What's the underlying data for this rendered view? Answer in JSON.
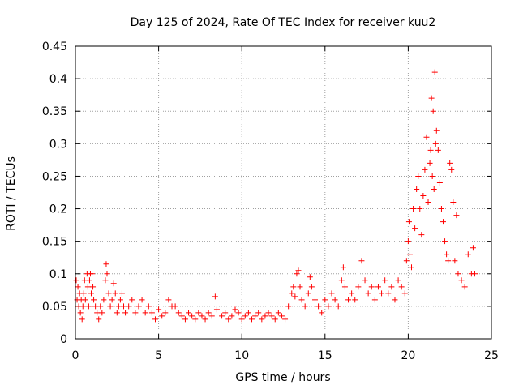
{
  "chart_data": {
    "type": "scatter",
    "title": "Day 125 of 2024, Rate Of TEC Index for receiver kuu2",
    "xlabel": "GPS time / hours",
    "ylabel": "ROTI / TECUs",
    "xlim": [
      0,
      25
    ],
    "ylim": [
      0,
      0.45
    ],
    "xticks": [
      0,
      5,
      10,
      15,
      20,
      25
    ],
    "xtick_labels": [
      "0",
      "5",
      "10",
      "15",
      "20",
      "25"
    ],
    "yticks": [
      0,
      0.05,
      0.1,
      0.15,
      0.2,
      0.25,
      0.3,
      0.35,
      0.4,
      0.45
    ],
    "ytick_labels": [
      "0",
      "0.05",
      "0.1",
      "0.15",
      "0.2",
      "0.25",
      "0.3",
      "0.35",
      "0.4",
      "0.45"
    ],
    "grid": true,
    "marker": "+",
    "series": [
      {
        "name": "ROTI",
        "color": "#ff0000",
        "points": [
          [
            0.05,
            0.09
          ],
          [
            0.1,
            0.06
          ],
          [
            0.15,
            0.08
          ],
          [
            0.2,
            0.05
          ],
          [
            0.25,
            0.07
          ],
          [
            0.3,
            0.04
          ],
          [
            0.35,
            0.06
          ],
          [
            0.4,
            0.03
          ],
          [
            0.45,
            0.05
          ],
          [
            0.5,
            0.07
          ],
          [
            0.55,
            0.09
          ],
          [
            0.6,
            0.06
          ],
          [
            0.7,
            0.1
          ],
          [
            0.75,
            0.08
          ],
          [
            0.8,
            0.05
          ],
          [
            0.85,
            0.09
          ],
          [
            0.9,
            0.1
          ],
          [
            0.95,
            0.07
          ],
          [
            1.0,
            0.1
          ],
          [
            1.05,
            0.08
          ],
          [
            1.1,
            0.06
          ],
          [
            1.2,
            0.05
          ],
          [
            1.3,
            0.04
          ],
          [
            1.4,
            0.03
          ],
          [
            1.5,
            0.05
          ],
          [
            1.6,
            0.04
          ],
          [
            1.7,
            0.06
          ],
          [
            1.8,
            0.09
          ],
          [
            1.85,
            0.115
          ],
          [
            1.9,
            0.1
          ],
          [
            2.0,
            0.07
          ],
          [
            2.1,
            0.05
          ],
          [
            2.2,
            0.06
          ],
          [
            2.3,
            0.085
          ],
          [
            2.4,
            0.07
          ],
          [
            2.5,
            0.04
          ],
          [
            2.6,
            0.05
          ],
          [
            2.7,
            0.06
          ],
          [
            2.8,
            0.07
          ],
          [
            2.9,
            0.05
          ],
          [
            3.0,
            0.04
          ],
          [
            3.2,
            0.05
          ],
          [
            3.4,
            0.06
          ],
          [
            3.6,
            0.04
          ],
          [
            3.8,
            0.05
          ],
          [
            4.0,
            0.06
          ],
          [
            4.2,
            0.04
          ],
          [
            4.4,
            0.05
          ],
          [
            4.6,
            0.04
          ],
          [
            4.8,
            0.03
          ],
          [
            5.0,
            0.045
          ],
          [
            5.2,
            0.035
          ],
          [
            5.4,
            0.04
          ],
          [
            5.6,
            0.06
          ],
          [
            5.8,
            0.05
          ],
          [
            6.0,
            0.05
          ],
          [
            6.2,
            0.04
          ],
          [
            6.4,
            0.035
          ],
          [
            6.6,
            0.03
          ],
          [
            6.8,
            0.04
          ],
          [
            7.0,
            0.035
          ],
          [
            7.2,
            0.03
          ],
          [
            7.4,
            0.04
          ],
          [
            7.6,
            0.035
          ],
          [
            7.8,
            0.03
          ],
          [
            8.0,
            0.04
          ],
          [
            8.2,
            0.035
          ],
          [
            8.4,
            0.065
          ],
          [
            8.5,
            0.045
          ],
          [
            8.8,
            0.035
          ],
          [
            9.0,
            0.04
          ],
          [
            9.2,
            0.03
          ],
          [
            9.4,
            0.035
          ],
          [
            9.6,
            0.045
          ],
          [
            9.8,
            0.04
          ],
          [
            10.0,
            0.03
          ],
          [
            10.2,
            0.035
          ],
          [
            10.4,
            0.04
          ],
          [
            10.6,
            0.03
          ],
          [
            10.8,
            0.035
          ],
          [
            11.0,
            0.04
          ],
          [
            11.2,
            0.03
          ],
          [
            11.4,
            0.035
          ],
          [
            11.6,
            0.04
          ],
          [
            11.8,
            0.035
          ],
          [
            12.0,
            0.03
          ],
          [
            12.2,
            0.04
          ],
          [
            12.4,
            0.035
          ],
          [
            12.6,
            0.03
          ],
          [
            12.8,
            0.05
          ],
          [
            13.0,
            0.07
          ],
          [
            13.1,
            0.08
          ],
          [
            13.2,
            0.065
          ],
          [
            13.3,
            0.1
          ],
          [
            13.4,
            0.105
          ],
          [
            13.5,
            0.08
          ],
          [
            13.6,
            0.06
          ],
          [
            13.8,
            0.05
          ],
          [
            14.0,
            0.07
          ],
          [
            14.1,
            0.095
          ],
          [
            14.2,
            0.08
          ],
          [
            14.4,
            0.06
          ],
          [
            14.6,
            0.05
          ],
          [
            14.8,
            0.04
          ],
          [
            15.0,
            0.06
          ],
          [
            15.2,
            0.05
          ],
          [
            15.4,
            0.07
          ],
          [
            15.6,
            0.06
          ],
          [
            15.8,
            0.05
          ],
          [
            16.0,
            0.09
          ],
          [
            16.1,
            0.11
          ],
          [
            16.2,
            0.08
          ],
          [
            16.4,
            0.06
          ],
          [
            16.6,
            0.07
          ],
          [
            16.8,
            0.06
          ],
          [
            17.0,
            0.08
          ],
          [
            17.2,
            0.12
          ],
          [
            17.4,
            0.09
          ],
          [
            17.6,
            0.07
          ],
          [
            17.8,
            0.08
          ],
          [
            18.0,
            0.06
          ],
          [
            18.2,
            0.08
          ],
          [
            18.4,
            0.07
          ],
          [
            18.6,
            0.09
          ],
          [
            18.8,
            0.07
          ],
          [
            19.0,
            0.08
          ],
          [
            19.2,
            0.06
          ],
          [
            19.4,
            0.09
          ],
          [
            19.6,
            0.08
          ],
          [
            19.8,
            0.07
          ],
          [
            19.9,
            0.12
          ],
          [
            20.0,
            0.15
          ],
          [
            20.05,
            0.18
          ],
          [
            20.1,
            0.13
          ],
          [
            20.2,
            0.11
          ],
          [
            20.3,
            0.2
          ],
          [
            20.4,
            0.17
          ],
          [
            20.5,
            0.23
          ],
          [
            20.6,
            0.25
          ],
          [
            20.7,
            0.2
          ],
          [
            20.8,
            0.16
          ],
          [
            20.9,
            0.22
          ],
          [
            21.0,
            0.26
          ],
          [
            21.1,
            0.31
          ],
          [
            21.2,
            0.21
          ],
          [
            21.3,
            0.27
          ],
          [
            21.35,
            0.29
          ],
          [
            21.4,
            0.37
          ],
          [
            21.45,
            0.25
          ],
          [
            21.5,
            0.35
          ],
          [
            21.55,
            0.23
          ],
          [
            21.6,
            0.41
          ],
          [
            21.65,
            0.3
          ],
          [
            21.7,
            0.32
          ],
          [
            21.8,
            0.29
          ],
          [
            21.9,
            0.24
          ],
          [
            22.0,
            0.2
          ],
          [
            22.1,
            0.18
          ],
          [
            22.2,
            0.15
          ],
          [
            22.3,
            0.13
          ],
          [
            22.4,
            0.12
          ],
          [
            22.5,
            0.27
          ],
          [
            22.6,
            0.26
          ],
          [
            22.7,
            0.21
          ],
          [
            22.8,
            0.12
          ],
          [
            22.9,
            0.19
          ],
          [
            23.0,
            0.1
          ],
          [
            23.2,
            0.09
          ],
          [
            23.4,
            0.08
          ],
          [
            23.6,
            0.13
          ],
          [
            23.8,
            0.1
          ],
          [
            23.9,
            0.14
          ],
          [
            24.0,
            0.1
          ]
        ]
      }
    ]
  }
}
